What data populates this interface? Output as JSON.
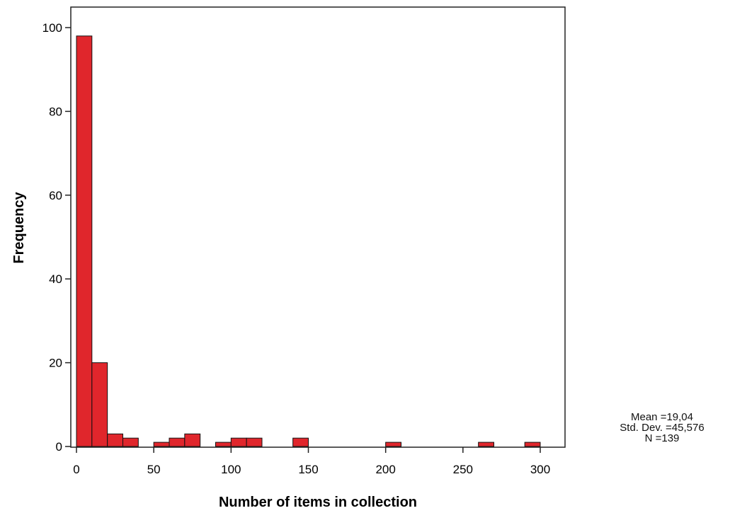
{
  "chart_data": {
    "type": "bar",
    "subtype": "histogram",
    "xlabel": "Number of items in collection",
    "ylabel": "Frequency",
    "xlim": [
      0,
      315
    ],
    "ylim": [
      0,
      105
    ],
    "xticks": [
      0,
      50,
      100,
      150,
      200,
      250,
      300
    ],
    "yticks": [
      0,
      20,
      40,
      60,
      80,
      100
    ],
    "bin_width": 10,
    "bins": [
      {
        "x0": 0,
        "x1": 10,
        "count": 98
      },
      {
        "x0": 10,
        "x1": 20,
        "count": 20
      },
      {
        "x0": 20,
        "x1": 30,
        "count": 3
      },
      {
        "x0": 30,
        "x1": 40,
        "count": 2
      },
      {
        "x0": 50,
        "x1": 60,
        "count": 1
      },
      {
        "x0": 60,
        "x1": 70,
        "count": 2
      },
      {
        "x0": 70,
        "x1": 80,
        "count": 3
      },
      {
        "x0": 90,
        "x1": 100,
        "count": 1
      },
      {
        "x0": 100,
        "x1": 110,
        "count": 2
      },
      {
        "x0": 110,
        "x1": 120,
        "count": 2
      },
      {
        "x0": 140,
        "x1": 150,
        "count": 2
      },
      {
        "x0": 200,
        "x1": 210,
        "count": 1
      },
      {
        "x0": 260,
        "x1": 270,
        "count": 1
      },
      {
        "x0": 290,
        "x1": 300,
        "count": 1
      }
    ],
    "bar_color": "#e0262c",
    "grid": false,
    "stats": {
      "mean": "Mean =19,04",
      "std": "Std. Dev. =45,576",
      "n": "N =139"
    }
  }
}
